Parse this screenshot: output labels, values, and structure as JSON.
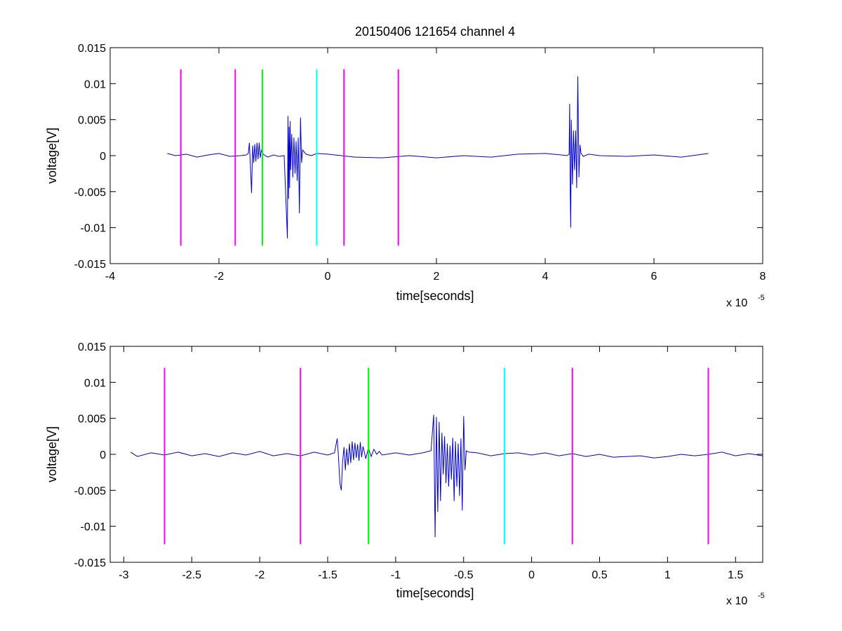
{
  "chart_data": [
    {
      "type": "line",
      "title": "20150406 121654 channel 4",
      "xlabel": "time[seconds]",
      "ylabel": "voltage[V]",
      "x_exponent_base": "x 10",
      "x_exponent_power": "-5",
      "xlim": [
        -4,
        8
      ],
      "ylim": [
        -0.015,
        0.015
      ],
      "xticks": [
        -4,
        -2,
        0,
        2,
        4,
        6,
        8
      ],
      "xtick_labels": [
        "-4",
        "-2",
        "0",
        "2",
        "4",
        "6",
        "8"
      ],
      "yticks": [
        -0.015,
        -0.01,
        -0.005,
        0,
        0.005,
        0.01,
        0.015
      ],
      "ytick_labels": [
        "-0.015",
        "-0.01",
        "-0.005",
        "0",
        "0.005",
        "0.01",
        "0.015"
      ],
      "grid": false,
      "vlines": [
        {
          "x": -2.7,
          "ymin": -0.0125,
          "ymax": 0.012,
          "color": "#ff00ff"
        },
        {
          "x": -1.7,
          "ymin": -0.0125,
          "ymax": 0.012,
          "color": "#ff00ff"
        },
        {
          "x": -1.2,
          "ymin": -0.0125,
          "ymax": 0.012,
          "color": "#00ff00"
        },
        {
          "x": -0.2,
          "ymin": -0.0125,
          "ymax": 0.012,
          "color": "#00ffff"
        },
        {
          "x": 0.3,
          "ymin": -0.0125,
          "ymax": 0.012,
          "color": "#ff00ff"
        },
        {
          "x": 1.3,
          "ymin": -0.0125,
          "ymax": 0.012,
          "color": "#ff00ff"
        }
      ],
      "series": [
        {
          "color": "#0000cc",
          "x": [
            -2.95,
            -2.8,
            -2.6,
            -2.4,
            -2.2,
            -2.0,
            -1.8,
            -1.6,
            -1.5,
            -1.46,
            -1.44,
            -1.42,
            -1.4,
            -1.38,
            -1.36,
            -1.34,
            -1.32,
            -1.3,
            -1.28,
            -1.26,
            -1.24,
            -1.22,
            -1.2,
            -1.15,
            -1.1,
            -1.0,
            -0.9,
            -0.8,
            -0.74,
            -0.73,
            -0.72,
            -0.71,
            -0.7,
            -0.69,
            -0.68,
            -0.66,
            -0.64,
            -0.62,
            -0.6,
            -0.58,
            -0.56,
            -0.54,
            -0.52,
            -0.5,
            -0.48,
            -0.46,
            -0.4,
            -0.3,
            -0.2,
            0.0,
            0.5,
            1.0,
            1.5,
            2.0,
            2.5,
            3.0,
            3.5,
            4.0,
            4.3,
            4.4,
            4.44,
            4.45,
            4.46,
            4.47,
            4.48,
            4.5,
            4.52,
            4.54,
            4.56,
            4.58,
            4.6,
            4.62,
            4.64,
            4.66,
            4.7,
            4.8,
            5.0,
            5.5,
            6.0,
            6.5,
            7.0
          ],
          "y": [
            0.0003,
            0.0,
            0.0002,
            -0.0002,
            0.0001,
            0.0003,
            -0.0001,
            0.0,
            0.0001,
            0.0003,
            0.0018,
            -0.0015,
            -0.0052,
            0.0014,
            -0.001,
            0.0016,
            -0.0008,
            0.0018,
            -0.0005,
            0.0018,
            -0.0003,
            0.0008,
            0.0003,
            0.0,
            -0.0002,
            0.0001,
            -0.0001,
            0.0,
            -0.0115,
            0.0055,
            -0.006,
            0.004,
            -0.0045,
            0.0048,
            -0.002,
            0.003,
            -0.003,
            0.0025,
            -0.0025,
            0.002,
            -0.0035,
            0.0025,
            -0.008,
            0.0053,
            -0.001,
            0.0008,
            0.0002,
            0.0,
            0.0003,
            0.0002,
            -0.0002,
            -0.0003,
            0.0,
            -0.0003,
            0.0,
            -0.0002,
            0.0002,
            0.0003,
            0.0001,
            0.0,
            0.0002,
            0.0072,
            -0.0052,
            -0.01,
            0.005,
            -0.004,
            0.0035,
            -0.002,
            0.0035,
            -0.0045,
            0.011,
            -0.003,
            0.0015,
            0.0003,
            -0.0001,
            0.0002,
            0.0,
            -0.0001,
            0.0001,
            -0.0002,
            0.0003
          ]
        }
      ]
    },
    {
      "type": "line",
      "title": "",
      "xlabel": "time[seconds]",
      "ylabel": "voltage[V]",
      "x_exponent_base": "x 10",
      "x_exponent_power": "-5",
      "xlim": [
        -3.1,
        1.7
      ],
      "ylim": [
        -0.015,
        0.015
      ],
      "xticks": [
        -3,
        -2.5,
        -2,
        -1.5,
        -1,
        -0.5,
        0,
        0.5,
        1,
        1.5
      ],
      "xtick_labels": [
        "-3",
        "-2.5",
        "-2",
        "-1.5",
        "-1",
        "-0.5",
        "0",
        "0.5",
        "1",
        "1.5"
      ],
      "yticks": [
        -0.015,
        -0.01,
        -0.005,
        0,
        0.005,
        0.01,
        0.015
      ],
      "ytick_labels": [
        "-0.015",
        "-0.01",
        "-0.005",
        "0",
        "0.005",
        "0.01",
        "0.015"
      ],
      "grid": false,
      "vlines": [
        {
          "x": -2.7,
          "ymin": -0.0125,
          "ymax": 0.012,
          "color": "#ff00ff"
        },
        {
          "x": -1.7,
          "ymin": -0.0125,
          "ymax": 0.012,
          "color": "#ff00ff"
        },
        {
          "x": -1.2,
          "ymin": -0.0125,
          "ymax": 0.012,
          "color": "#00ff00"
        },
        {
          "x": -0.2,
          "ymin": -0.0125,
          "ymax": 0.012,
          "color": "#00ffff"
        },
        {
          "x": 0.3,
          "ymin": -0.0125,
          "ymax": 0.012,
          "color": "#ff00ff"
        },
        {
          "x": 1.3,
          "ymin": -0.0125,
          "ymax": 0.012,
          "color": "#ff00ff"
        }
      ],
      "series": [
        {
          "color": "#0000cc",
          "x": [
            -2.95,
            -2.9,
            -2.8,
            -2.7,
            -2.6,
            -2.5,
            -2.4,
            -2.3,
            -2.2,
            -2.1,
            -2.0,
            -1.9,
            -1.8,
            -1.7,
            -1.6,
            -1.5,
            -1.45,
            -1.43,
            -1.42,
            -1.41,
            -1.4,
            -1.39,
            -1.38,
            -1.37,
            -1.36,
            -1.35,
            -1.34,
            -1.33,
            -1.32,
            -1.31,
            -1.3,
            -1.29,
            -1.28,
            -1.27,
            -1.26,
            -1.25,
            -1.24,
            -1.22,
            -1.2,
            -1.18,
            -1.16,
            -1.14,
            -1.12,
            -1.1,
            -1.0,
            -0.9,
            -0.8,
            -0.74,
            -0.72,
            -0.71,
            -0.7,
            -0.69,
            -0.68,
            -0.67,
            -0.66,
            -0.65,
            -0.64,
            -0.63,
            -0.62,
            -0.61,
            -0.6,
            -0.59,
            -0.58,
            -0.57,
            -0.56,
            -0.55,
            -0.54,
            -0.53,
            -0.52,
            -0.51,
            -0.5,
            -0.49,
            -0.48,
            -0.46,
            -0.4,
            -0.3,
            -0.2,
            -0.1,
            0.0,
            0.1,
            0.2,
            0.3,
            0.4,
            0.5,
            0.6,
            0.7,
            0.8,
            0.9,
            1.0,
            1.1,
            1.2,
            1.3,
            1.4,
            1.5,
            1.6,
            1.7
          ],
          "y": [
            0.0003,
            -0.0003,
            0.0002,
            -0.0001,
            0.0003,
            -0.0002,
            0.0001,
            -0.0003,
            0.0002,
            -0.0001,
            0.0004,
            -0.0002,
            0.0001,
            -0.0002,
            0.0003,
            -0.0001,
            0.0002,
            0.0022,
            -0.0005,
            -0.004,
            -0.005,
            -0.001,
            0.001,
            -0.0022,
            0.0008,
            -0.0015,
            0.0015,
            -0.0012,
            0.0018,
            -0.0008,
            0.0016,
            -0.0005,
            0.0014,
            -0.0009,
            0.0017,
            -0.0004,
            0.0011,
            -0.0006,
            0.0009,
            -0.0003,
            0.0007,
            0.0,
            0.0004,
            -0.0001,
            0.0002,
            -0.0001,
            0.0002,
            0.0005,
            0.0055,
            -0.0115,
            0.0052,
            -0.008,
            0.0045,
            -0.0065,
            0.003,
            -0.0028,
            0.0025,
            -0.004,
            0.0015,
            -0.0045,
            0.0012,
            -0.0035,
            0.0023,
            -0.0065,
            0.0018,
            -0.0045,
            0.0015,
            -0.0058,
            0.0022,
            -0.0078,
            0.0053,
            -0.0022,
            0.0005,
            0.0003,
            0.0002,
            -0.0002,
            0.0001,
            0.0002,
            -0.0001,
            0.0002,
            -0.0002,
            0.0001,
            -0.0003,
            0.0,
            -0.0004,
            -0.0003,
            -0.0002,
            -0.0005,
            -0.0003,
            0.0,
            -0.0002,
            0.0,
            0.0003,
            -0.0002,
            0.0001,
            -0.0002
          ]
        }
      ]
    }
  ]
}
